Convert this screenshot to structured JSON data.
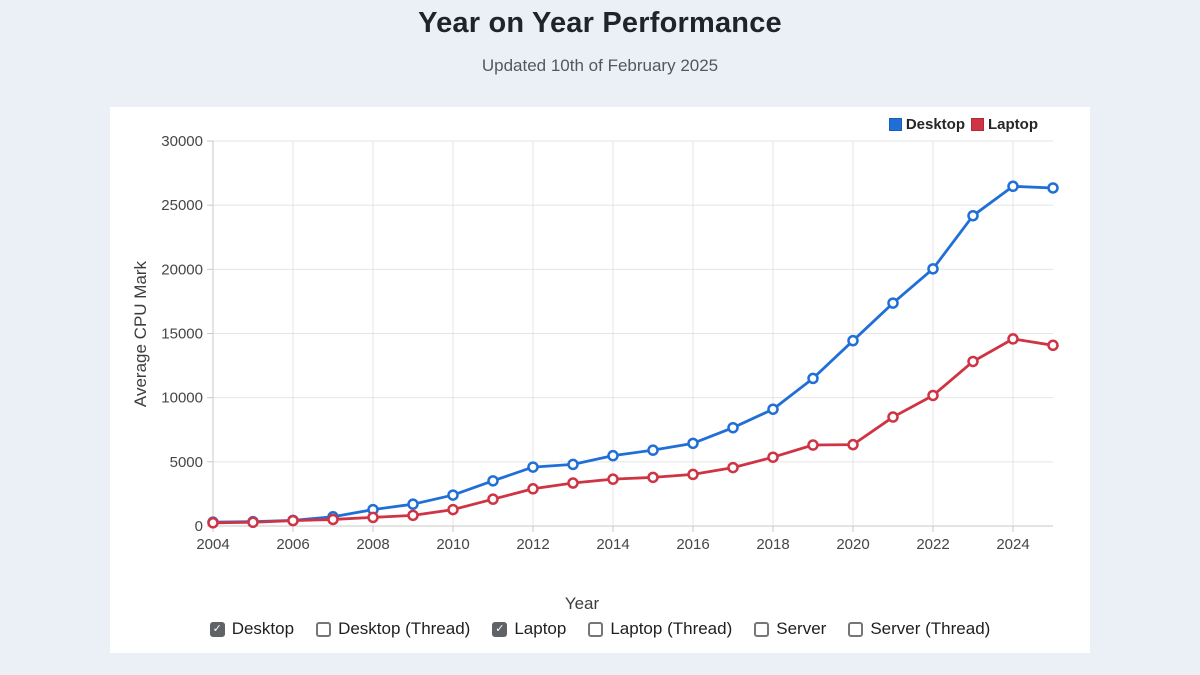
{
  "page": {
    "title": "Year on Year Performance",
    "subtitle": "Updated 10th of February 2025"
  },
  "colors": {
    "page_background": "#eaf0f5",
    "panel_background": "#ffffff",
    "grid": "#e4e4e4",
    "axis": "#c9c9c9",
    "tick_text": "#464646",
    "checked_box": "#5f6368",
    "desktop_blue": "#1f6fd6",
    "laptop_red": "#cf3444"
  },
  "chart_data": {
    "type": "line",
    "title": "Year on Year Performance",
    "xlabel": "Year",
    "ylabel": "Average CPU Mark",
    "xlim": [
      2004,
      2025
    ],
    "ylim": [
      0,
      30000
    ],
    "grid": true,
    "legend_position": "top-right",
    "marker": "open-circle",
    "x": [
      2004,
      2005,
      2006,
      2007,
      2008,
      2009,
      2010,
      2011,
      2012,
      2013,
      2014,
      2015,
      2016,
      2017,
      2018,
      2019,
      2020,
      2021,
      2022,
      2023,
      2024,
      2025
    ],
    "x_tick_labels": [
      "2004",
      "2006",
      "2008",
      "2010",
      "2012",
      "2014",
      "2016",
      "2018",
      "2020",
      "2022",
      "2024"
    ],
    "y_ticks": [
      0,
      5000,
      10000,
      15000,
      20000,
      25000,
      30000
    ],
    "series": [
      {
        "name": "Desktop",
        "color": "#1f6fd6",
        "values": [
          300,
          340,
          440,
          720,
          1280,
          1700,
          2410,
          3520,
          4590,
          4800,
          5480,
          5910,
          6440,
          7660,
          9100,
          11500,
          14440,
          17370,
          20040,
          24180,
          26470,
          26340
        ]
      },
      {
        "name": "Laptop",
        "color": "#cf3444",
        "values": [
          250,
          290,
          420,
          510,
          670,
          830,
          1280,
          2090,
          2900,
          3350,
          3650,
          3790,
          4020,
          4550,
          5360,
          6310,
          6340,
          8490,
          10170,
          12820,
          14580,
          14080
        ]
      }
    ]
  },
  "controls": {
    "check_glyph": "✓",
    "items": [
      {
        "label": "Desktop",
        "checked": true
      },
      {
        "label": "Desktop (Thread)",
        "checked": false
      },
      {
        "label": "Laptop",
        "checked": true
      },
      {
        "label": "Laptop (Thread)",
        "checked": false
      },
      {
        "label": "Server",
        "checked": false
      },
      {
        "label": "Server (Thread)",
        "checked": false
      }
    ]
  }
}
